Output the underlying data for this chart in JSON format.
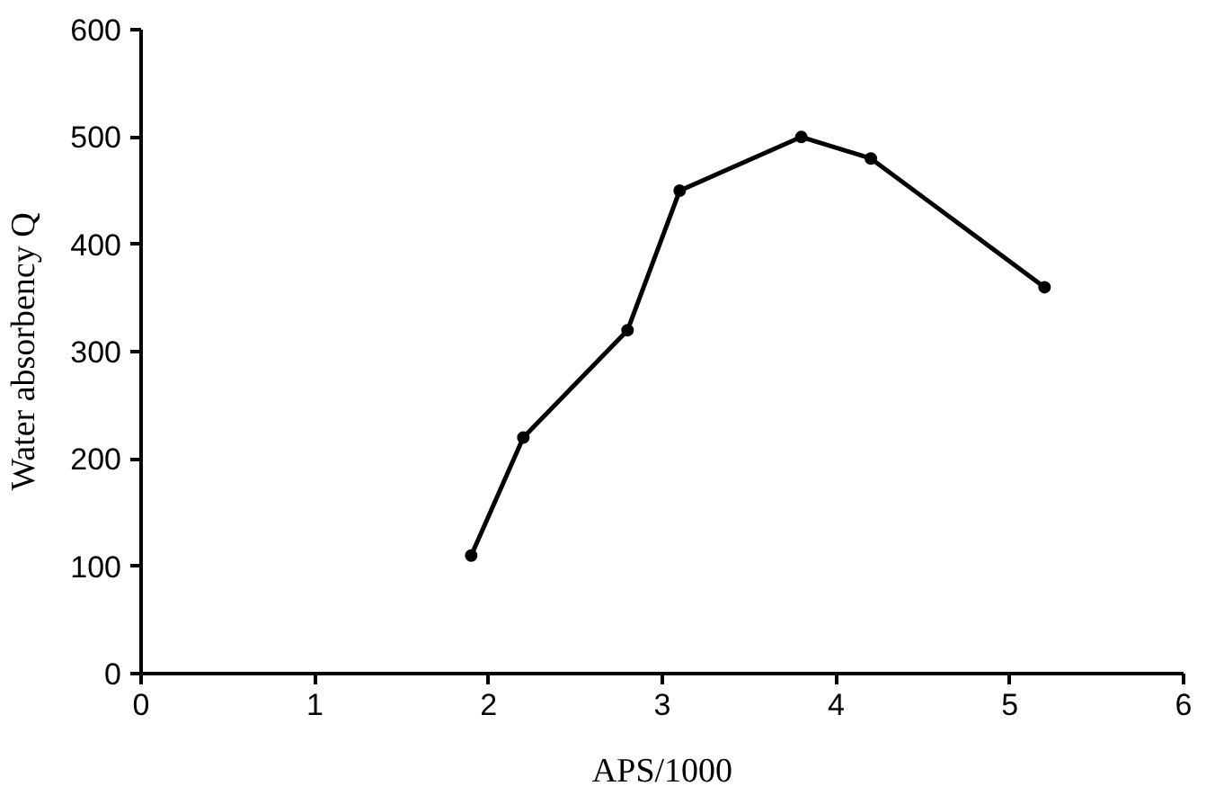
{
  "chart_data": {
    "type": "line",
    "xlabel": "APS/1000",
    "ylabel": "Water absorbency Q",
    "x": [
      1.9,
      2.2,
      2.8,
      3.1,
      3.8,
      4.2,
      5.2
    ],
    "series": [
      {
        "color": "#000000",
        "values": [
          110,
          220,
          320,
          450,
          500,
          480,
          360
        ]
      }
    ],
    "xlim": [
      0,
      6
    ],
    "ylim": [
      0,
      600
    ],
    "xticks": [
      0,
      1,
      2,
      3,
      4,
      5,
      6
    ],
    "yticks": [
      0,
      100,
      200,
      300,
      400,
      500,
      600
    ],
    "grid": false,
    "marker": "circle",
    "line_style": "solid"
  }
}
